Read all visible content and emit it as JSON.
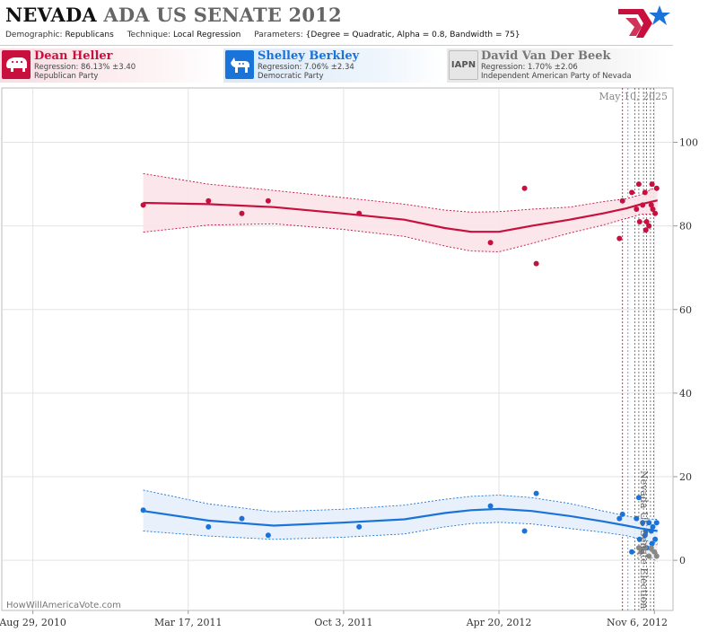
{
  "header": {
    "title_state": "NEVADA",
    "title_rest": "ADA US SENATE 2012",
    "demographic_label": "Demographic:",
    "demographic_value": "Republicans",
    "technique_label": "Technique:",
    "technique_value": "Local Regression",
    "parameters_label": "Parameters:",
    "parameters_value": "{Degree = Quadratic, Alpha = 0.8, Bandwidth = 75}"
  },
  "candidates": [
    {
      "name": "Dean Heller",
      "regression": "Regression: 86.13% ±3.40",
      "party": "Republican Party",
      "color": "#c8103e",
      "icon": "elephant-icon"
    },
    {
      "name": "Shelley Berkley",
      "regression": "Regression: 7.06% ±2.34",
      "party": "Democratic Party",
      "color": "#1a73d9",
      "icon": "donkey-icon"
    },
    {
      "name": "David Van Der Beek",
      "regression": "Regression: 1.70% ±2.06",
      "party": "Independent American Party  of Nevada",
      "color": "#777777",
      "icon_text": "IAPN"
    }
  ],
  "chart_data": {
    "type": "scatter",
    "date_label": "May 10, 2025",
    "watermark": "HowWillAmericaVote.com",
    "election_label": "Nevada US Senate Election",
    "x_range": [
      "2010-07-20",
      "2012-11-30"
    ],
    "ylim": [
      -12,
      113
    ],
    "y_ticks": [
      0,
      20,
      40,
      60,
      80,
      100
    ],
    "x_ticks": [
      {
        "date": "2010-08-29",
        "label": "Aug 29, 2010"
      },
      {
        "date": "2011-03-17",
        "label": "Mar 17, 2011"
      },
      {
        "date": "2011-10-03",
        "label": "Oct 3, 2011"
      },
      {
        "date": "2012-04-20",
        "label": "Apr 20, 2012"
      },
      {
        "date": "2012-11-06",
        "label": "Nov 6, 2012"
      }
    ],
    "grid_dates": [
      "2010-08-29",
      "2011-03-17",
      "2011-10-03",
      "2012-04-20",
      "2012-11-06"
    ],
    "poll_lines": [
      {
        "date": "2012-09-26",
        "color": "#c8103e"
      },
      {
        "date": "2012-09-26",
        "color": "#c8103e"
      },
      {
        "date": "2012-10-03",
        "color": "#1a73d9"
      },
      {
        "date": "2012-10-12",
        "color": "#333333"
      },
      {
        "date": "2012-10-17",
        "color": "#333333"
      },
      {
        "date": "2012-10-23",
        "color": "#333333"
      },
      {
        "date": "2012-10-27",
        "color": "#333333"
      },
      {
        "date": "2012-11-01",
        "color": "#333333"
      },
      {
        "date": "2012-11-05",
        "color": "#333333"
      }
    ],
    "series": [
      {
        "name": "Dean Heller",
        "color": "#c8103e",
        "band_color": "#fbe3e9",
        "points": [
          [
            "2011-01-18",
            85
          ],
          [
            "2011-04-12",
            86
          ],
          [
            "2011-05-25",
            83
          ],
          [
            "2011-06-28",
            86
          ],
          [
            "2011-10-23",
            83
          ],
          [
            "2012-04-09",
            76
          ],
          [
            "2012-05-23",
            89
          ],
          [
            "2012-06-07",
            71
          ],
          [
            "2012-09-22",
            77
          ],
          [
            "2012-09-26",
            86
          ],
          [
            "2012-10-08",
            88
          ],
          [
            "2012-10-14",
            84
          ],
          [
            "2012-10-17",
            90
          ],
          [
            "2012-10-18",
            81
          ],
          [
            "2012-10-22",
            85
          ],
          [
            "2012-10-25",
            88
          ],
          [
            "2012-10-26",
            79
          ],
          [
            "2012-10-27",
            81
          ],
          [
            "2012-10-30",
            80
          ],
          [
            "2012-11-02",
            85
          ],
          [
            "2012-11-03",
            90
          ],
          [
            "2012-11-04",
            84
          ],
          [
            "2012-11-07",
            83
          ],
          [
            "2012-11-09",
            89
          ]
        ],
        "trend": [
          [
            "2011-01-18",
            85.5
          ],
          [
            "2011-04-12",
            85.2
          ],
          [
            "2011-07-05",
            84.5
          ],
          [
            "2011-10-01",
            83.0
          ],
          [
            "2011-12-20",
            81.5
          ],
          [
            "2012-02-10",
            79.5
          ],
          [
            "2012-03-15",
            78.6
          ],
          [
            "2012-04-20",
            78.6
          ],
          [
            "2012-06-01",
            80.0
          ],
          [
            "2012-07-20",
            81.5
          ],
          [
            "2012-09-01",
            83.0
          ],
          [
            "2012-10-01",
            84.2
          ],
          [
            "2012-10-20",
            85.2
          ],
          [
            "2012-11-10",
            86.1
          ]
        ],
        "upper": [
          [
            "2011-01-18",
            92.5
          ],
          [
            "2011-04-12",
            90.0
          ],
          [
            "2011-07-05",
            88.5
          ],
          [
            "2011-10-01",
            86.8
          ],
          [
            "2011-12-20",
            85.2
          ],
          [
            "2012-02-10",
            83.8
          ],
          [
            "2012-03-15",
            83.3
          ],
          [
            "2012-04-20",
            83.4
          ],
          [
            "2012-06-01",
            84.0
          ],
          [
            "2012-07-20",
            84.5
          ],
          [
            "2012-09-01",
            85.8
          ],
          [
            "2012-10-01",
            86.5
          ],
          [
            "2012-10-20",
            87.5
          ],
          [
            "2012-11-10",
            89.5
          ]
        ],
        "lower": [
          [
            "2011-01-18",
            78.5
          ],
          [
            "2011-04-12",
            80.2
          ],
          [
            "2011-07-05",
            80.5
          ],
          [
            "2011-10-01",
            79.2
          ],
          [
            "2011-12-20",
            77.5
          ],
          [
            "2012-02-10",
            75.2
          ],
          [
            "2012-03-15",
            74.0
          ],
          [
            "2012-04-20",
            73.8
          ],
          [
            "2012-06-01",
            75.8
          ],
          [
            "2012-07-20",
            78.3
          ],
          [
            "2012-09-01",
            80.2
          ],
          [
            "2012-10-01",
            81.8
          ],
          [
            "2012-10-20",
            82.8
          ],
          [
            "2012-11-10",
            82.8
          ]
        ]
      },
      {
        "name": "Shelley Berkley",
        "color": "#1a73d9",
        "band_color": "#e6f0fb",
        "points": [
          [
            "2011-01-18",
            12
          ],
          [
            "2011-04-12",
            8
          ],
          [
            "2011-05-25",
            10
          ],
          [
            "2011-06-28",
            6
          ],
          [
            "2011-10-23",
            8
          ],
          [
            "2012-04-09",
            13
          ],
          [
            "2012-05-23",
            7
          ],
          [
            "2012-06-07",
            16
          ],
          [
            "2012-09-22",
            10
          ],
          [
            "2012-09-26",
            11
          ],
          [
            "2012-10-08",
            2
          ],
          [
            "2012-10-14",
            10
          ],
          [
            "2012-10-17",
            15
          ],
          [
            "2012-10-18",
            5
          ],
          [
            "2012-10-22",
            9
          ],
          [
            "2012-10-25",
            6
          ],
          [
            "2012-10-26",
            7
          ],
          [
            "2012-10-27",
            3
          ],
          [
            "2012-10-30",
            9
          ],
          [
            "2012-11-02",
            7
          ],
          [
            "2012-11-03",
            4
          ],
          [
            "2012-11-04",
            8
          ],
          [
            "2012-11-07",
            5
          ],
          [
            "2012-11-09",
            9
          ]
        ],
        "trend": [
          [
            "2011-01-18",
            11.8
          ],
          [
            "2011-04-12",
            9.5
          ],
          [
            "2011-07-05",
            8.3
          ],
          [
            "2011-10-01",
            9.0
          ],
          [
            "2011-12-20",
            9.8
          ],
          [
            "2012-02-10",
            11.3
          ],
          [
            "2012-03-15",
            12.0
          ],
          [
            "2012-04-20",
            12.3
          ],
          [
            "2012-06-01",
            11.8
          ],
          [
            "2012-07-20",
            10.6
          ],
          [
            "2012-09-01",
            9.3
          ],
          [
            "2012-10-01",
            8.3
          ],
          [
            "2012-10-20",
            7.6
          ],
          [
            "2012-11-10",
            7.0
          ]
        ],
        "upper": [
          [
            "2011-01-18",
            16.8
          ],
          [
            "2011-04-12",
            13.5
          ],
          [
            "2011-07-05",
            11.6
          ],
          [
            "2011-10-01",
            12.2
          ],
          [
            "2011-12-20",
            13.2
          ],
          [
            "2012-02-10",
            14.6
          ],
          [
            "2012-03-15",
            15.3
          ],
          [
            "2012-04-20",
            15.6
          ],
          [
            "2012-06-01",
            15.0
          ],
          [
            "2012-07-20",
            13.6
          ],
          [
            "2012-09-01",
            11.8
          ],
          [
            "2012-10-01",
            10.6
          ],
          [
            "2012-10-20",
            10.0
          ],
          [
            "2012-11-10",
            9.8
          ]
        ],
        "lower": [
          [
            "2011-01-18",
            7.0
          ],
          [
            "2011-04-12",
            5.8
          ],
          [
            "2011-07-05",
            5.0
          ],
          [
            "2011-10-01",
            5.5
          ],
          [
            "2011-12-20",
            6.3
          ],
          [
            "2012-02-10",
            8.0
          ],
          [
            "2012-03-15",
            8.8
          ],
          [
            "2012-04-20",
            9.1
          ],
          [
            "2012-06-01",
            8.7
          ],
          [
            "2012-07-20",
            7.6
          ],
          [
            "2012-09-01",
            6.7
          ],
          [
            "2012-10-01",
            5.9
          ],
          [
            "2012-10-20",
            5.0
          ],
          [
            "2012-11-10",
            4.0
          ]
        ]
      },
      {
        "name": "David Van Der Beek",
        "color": "#888888",
        "band_color": "#eeeeee",
        "points": [
          [
            "2012-10-17",
            3
          ],
          [
            "2012-10-20",
            2
          ],
          [
            "2012-10-25",
            3
          ],
          [
            "2012-10-30",
            1
          ],
          [
            "2012-11-02",
            3
          ],
          [
            "2012-11-06",
            2
          ],
          [
            "2012-11-09",
            1
          ]
        ],
        "trend": [
          [
            "2012-10-15",
            1.4
          ],
          [
            "2012-10-22",
            2.9
          ],
          [
            "2012-10-29",
            2.8
          ],
          [
            "2012-11-05",
            1.8
          ],
          [
            "2012-11-10",
            1.7
          ]
        ],
        "upper": [
          [
            "2012-10-15",
            2.6
          ],
          [
            "2012-10-22",
            4.0
          ],
          [
            "2012-10-29",
            4.2
          ],
          [
            "2012-11-05",
            3.6
          ],
          [
            "2012-11-10",
            3.8
          ]
        ],
        "lower": [
          [
            "2012-10-15",
            0.4
          ],
          [
            "2012-10-22",
            1.8
          ],
          [
            "2012-10-29",
            1.4
          ],
          [
            "2012-11-05",
            0.2
          ],
          [
            "2012-11-10",
            -0.3
          ]
        ]
      }
    ]
  }
}
